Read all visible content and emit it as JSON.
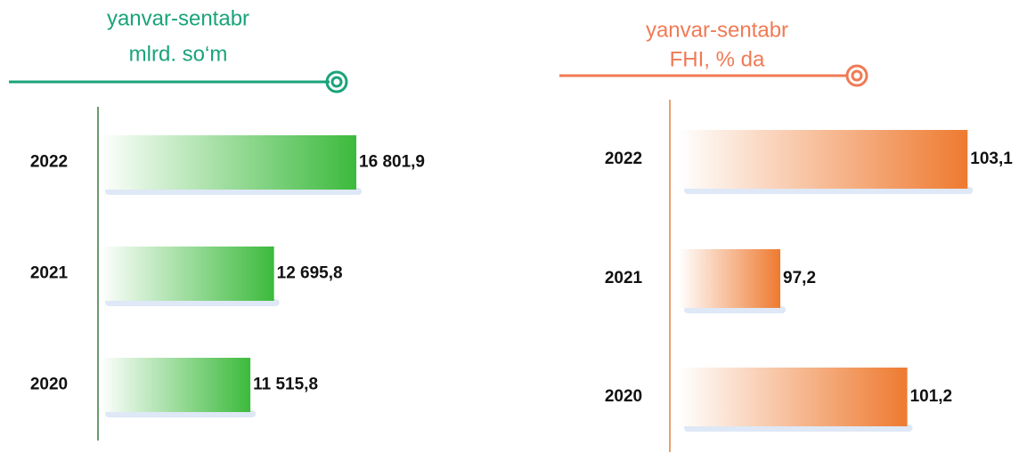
{
  "chart_data": [
    {
      "type": "bar",
      "orientation": "horizontal",
      "title": "yanvar-sentabr",
      "subtitle": "mlrd. so‘m",
      "categories": [
        "2022",
        "2021",
        "2020"
      ],
      "values": [
        16801.9,
        12695.8,
        11515.8
      ],
      "value_labels": [
        "16 801,9",
        "12 695,8",
        "11 515,8"
      ],
      "color": "#3cba3c",
      "title_color": "#1aa37a",
      "xlim": [
        4000,
        20000
      ]
    },
    {
      "type": "bar",
      "orientation": "horizontal",
      "title": "yanvar-sentabr",
      "subtitle": "FHI, % da",
      "categories": [
        "2022",
        "2021",
        "2020"
      ],
      "values": [
        103.1,
        97.2,
        101.2
      ],
      "value_labels": [
        "103,1",
        "97,2",
        "101,2"
      ],
      "color": "#ee7a30",
      "title_color": "#f07a55",
      "xlim": [
        94,
        105
      ]
    }
  ]
}
